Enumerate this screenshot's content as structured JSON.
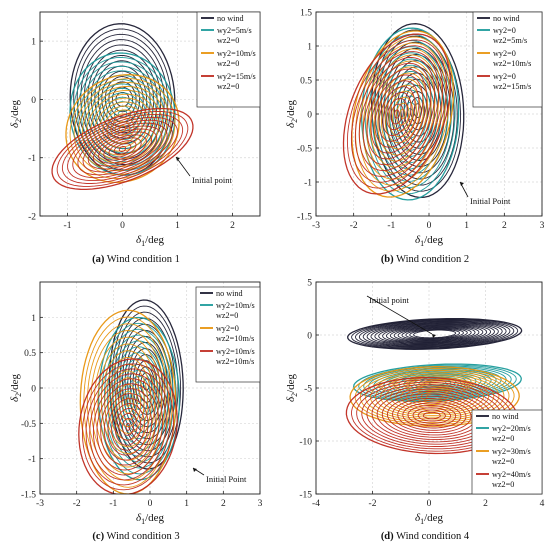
{
  "chart_data": [
    {
      "type": "line",
      "caption_tag": "(a)",
      "caption_text": "Wind condition 1",
      "xlabel": "δ1/deg",
      "ylabel": "δ2/deg",
      "xlim": [
        -1.5,
        2.5
      ],
      "ylim": [
        -2,
        1.5
      ],
      "xticks": [
        -1,
        0,
        1,
        2
      ],
      "yticks": [
        -2,
        -1,
        0,
        1
      ],
      "grid": true,
      "legend_position": "top-right",
      "legend": [
        "no wind",
        "wy2=5m/s\nwz2=0",
        "wy2=10m/s\nwz2=0",
        "wy2=15m/s\nwz2=0"
      ],
      "annotation": {
        "text": "Initial point",
        "x": 1.0,
        "y": -0.8
      },
      "series": [
        {
          "color": "#1b1b30",
          "center": [
            0.0,
            0.0
          ],
          "r_out": [
            0.95,
            1.3
          ],
          "rot": 0.05,
          "r_in": [
            0.12,
            0.12
          ],
          "rings": 14
        },
        {
          "color": "#1a9a9a",
          "center": [
            0.0,
            -0.25
          ],
          "r_out": [
            0.95,
            1.05
          ],
          "rot": 0.2,
          "r_in": [
            0.08,
            0.06
          ],
          "rings": 14
        },
        {
          "color": "#e8930c",
          "center": [
            0.0,
            -0.5
          ],
          "r_out": [
            1.05,
            0.9
          ],
          "rot": 0.4,
          "r_in": [
            0.06,
            0.05
          ],
          "rings": 14
        },
        {
          "color": "#bf2a1f",
          "center": [
            0.0,
            -0.85
          ],
          "r_out": [
            1.35,
            0.55
          ],
          "rot": 0.35,
          "r_in": [
            0.06,
            0.04
          ],
          "rings": 14
        }
      ]
    },
    {
      "type": "line",
      "caption_tag": "(b)",
      "caption_text": "Wind condition 2",
      "xlabel": "δ1/deg",
      "ylabel": "δ2/deg",
      "xlim": [
        -3,
        3
      ],
      "ylim": [
        -1.5,
        1.5
      ],
      "xticks": [
        -3,
        -2,
        -1,
        0,
        1,
        2,
        3
      ],
      "yticks": [
        -1.5,
        -1,
        -0.5,
        0,
        0.5,
        1,
        1.5
      ],
      "grid": true,
      "legend_position": "top-right",
      "legend": [
        "no wind",
        "wy2=0\nwz2=5m/s",
        "wy2=0\nwz2=10m/s",
        "wy2=0\nwz2=15m/s"
      ],
      "annotation": {
        "text": "Initial Point",
        "x": 0.9,
        "y": -1.2
      },
      "series": [
        {
          "color": "#1b1b30",
          "center": [
            -0.3,
            0.05
          ],
          "r_out": [
            1.2,
            1.3
          ],
          "rot": 0.5,
          "r_in": [
            0.1,
            0.1
          ],
          "rings": 14
        },
        {
          "color": "#1a9a9a",
          "center": [
            -0.5,
            0.0
          ],
          "r_out": [
            1.3,
            1.25
          ],
          "rot": 0.55,
          "r_in": [
            0.08,
            0.08
          ],
          "rings": 14
        },
        {
          "color": "#e8930c",
          "center": [
            -0.7,
            0.0
          ],
          "r_out": [
            1.45,
            1.1
          ],
          "rot": 0.6,
          "r_in": [
            0.07,
            0.07
          ],
          "rings": 14
        },
        {
          "color": "#bf2a1f",
          "center": [
            -0.85,
            0.0
          ],
          "r_out": [
            1.55,
            1.0
          ],
          "rot": 0.55,
          "r_in": [
            0.06,
            0.06
          ],
          "rings": 14
        }
      ]
    },
    {
      "type": "line",
      "caption_tag": "(c)",
      "caption_text": "Wind condition 3",
      "xlabel": "δ1/deg",
      "ylabel": "δ2/deg",
      "xlim": [
        -3,
        3
      ],
      "ylim": [
        -1.5,
        1.5
      ],
      "xticks": [
        -3,
        -2,
        -1,
        0,
        1,
        2,
        3
      ],
      "yticks": [
        -1.5,
        -1,
        -0.5,
        0,
        0.5,
        1
      ],
      "grid": true,
      "legend_position": "top-right",
      "legend": [
        "no wind",
        "wy2=10m/s\nwz2=0",
        "wy2=0\nwz2=10m/s",
        "wy2=10m/s\nwz2=10m/s"
      ],
      "annotation": {
        "text": "Initial Point",
        "x": 0.9,
        "y": -0.9
      },
      "series": [
        {
          "color": "#1b1b30",
          "center": [
            -0.1,
            0.05
          ],
          "r_out": [
            1.0,
            1.2
          ],
          "rot": 0.15,
          "r_in": [
            0.08,
            0.08
          ],
          "rings": 14
        },
        {
          "color": "#1a9a9a",
          "center": [
            -0.3,
            -0.15
          ],
          "r_out": [
            1.1,
            1.15
          ],
          "rot": 0.2,
          "r_in": [
            0.07,
            0.07
          ],
          "rings": 14
        },
        {
          "color": "#e8930c",
          "center": [
            -0.6,
            -0.2
          ],
          "r_out": [
            1.3,
            1.3
          ],
          "rot": 0.4,
          "r_in": [
            0.06,
            0.06
          ],
          "rings": 14
        },
        {
          "color": "#bf2a1f",
          "center": [
            -0.6,
            -0.55
          ],
          "r_out": [
            1.35,
            0.95
          ],
          "rot": 0.15,
          "r_in": [
            0.05,
            0.05
          ],
          "rings": 14
        }
      ]
    },
    {
      "type": "line",
      "caption_tag": "(d)",
      "caption_text": "Wind condition 4",
      "xlabel": "δ1/deg",
      "ylabel": "δ2/deg",
      "xlim": [
        -4,
        4
      ],
      "ylim": [
        -15,
        5
      ],
      "xticks": [
        -4,
        -2,
        0,
        2,
        4
      ],
      "yticks": [
        -15,
        -10,
        -5,
        0,
        5
      ],
      "grid": true,
      "legend_position": "bottom-right",
      "legend": [
        "no wind",
        "wy2=20m/s\nwz2=0",
        "wy2=30m/s\nwz2=0",
        "wy2=40m/s\nwz2=0"
      ],
      "annotation": {
        "text": "Initial point",
        "x": 1.0,
        "y": -0.5
      },
      "series": [
        {
          "color": "#1b1b30",
          "center": [
            0.2,
            0.1
          ],
          "r_out": [
            3.1,
            1.4
          ],
          "rot": 0.13,
          "r_in": [
            0.75,
            0.35
          ],
          "rings": 18
        },
        {
          "color": "#1a9a9a",
          "center": [
            0.3,
            -4.5
          ],
          "r_out": [
            3.0,
            1.7
          ],
          "rot": 0.18,
          "r_in": [
            0.3,
            0.2
          ],
          "rings": 16
        },
        {
          "color": "#e8930c",
          "center": [
            0.2,
            -5.8
          ],
          "r_out": [
            3.0,
            2.8
          ],
          "rot": 0.18,
          "r_in": [
            0.3,
            0.25
          ],
          "rings": 16
        },
        {
          "color": "#bf2a1f",
          "center": [
            0.1,
            -7.6
          ],
          "r_out": [
            3.0,
            3.6
          ],
          "rot": 0.2,
          "r_in": [
            0.3,
            0.3
          ],
          "rings": 16
        }
      ]
    }
  ]
}
